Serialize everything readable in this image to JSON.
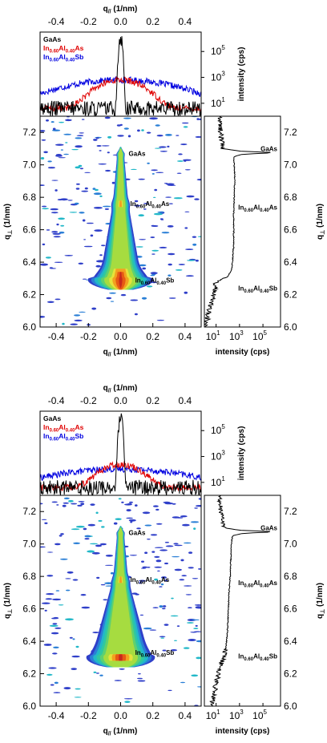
{
  "chart_data": [
    {
      "type": "heatmap",
      "panel": "top",
      "axes": {
        "qpar_label": {
          "main": "q",
          "sub": "//",
          "unit": " (1/nm)"
        },
        "qperp_label": {
          "main": "q",
          "sub": "⊥",
          "unit": " (1/nm)"
        },
        "intensity_label": "intensity (cps)",
        "qpar_range": [
          -0.5,
          0.5
        ],
        "qpar_ticks": [
          "-0.4",
          "-0.2",
          "0.0",
          "0.2",
          "0.4"
        ],
        "qperp_range": [
          6.0,
          7.3
        ],
        "qperp_ticks": [
          "6.0",
          "6.2",
          "6.4",
          "6.6",
          "6.8",
          "7.0",
          "7.2"
        ],
        "intensity_range_log10": [
          0,
          6.5
        ],
        "intensity_ticks": [
          {
            "base": "10",
            "exp": "1",
            "log10": 1
          },
          {
            "base": "10",
            "exp": "3",
            "log10": 3
          },
          {
            "base": "10",
            "exp": "5",
            "log10": 5
          }
        ]
      },
      "legend": [
        {
          "base": "GaAs",
          "parts": [],
          "color": "#000000"
        },
        {
          "base": "In",
          "parts": [
            [
              "0.60",
              "Al"
            ],
            [
              "0.40",
              "As"
            ]
          ],
          "color": "#e00000"
        },
        {
          "base": "In",
          "parts": [
            [
              "0.60",
              "Al"
            ],
            [
              "0.40",
              "Sb"
            ]
          ],
          "color": "#0000e0"
        }
      ],
      "qscan_series": [
        {
          "name": "GaAs",
          "color": "#000000",
          "peak_log10": 6.1,
          "center": 0.0,
          "width": 0.006,
          "background_log10": 0.6
        },
        {
          "name": "In0.60Al0.40As",
          "color": "#e00000",
          "peak_log10": 2.8,
          "center": 0.0,
          "width": 0.09,
          "background_log10": 0.6
        },
        {
          "name": "In0.60Al0.40Sb",
          "color": "#0000e0",
          "peak_log10": 2.8,
          "center": 0.0,
          "width": 0.22,
          "background_log10": 0.9
        }
      ],
      "map_annotations": [
        {
          "qpar": 0.05,
          "qperp": 7.07,
          "base": "GaAs",
          "parts": []
        },
        {
          "qpar": 0.06,
          "qperp": 6.76,
          "base": "In",
          "parts": [
            [
              "0.60",
              "Al"
            ],
            [
              "0.40",
              "As"
            ]
          ]
        },
        {
          "qpar": 0.09,
          "qperp": 6.29,
          "base": "In",
          "parts": [
            [
              "0.60",
              "Al"
            ],
            [
              "0.40",
              "Sb"
            ]
          ]
        }
      ],
      "profile_annotations": [
        {
          "qperp": 7.1,
          "base": "GaAs",
          "parts": []
        },
        {
          "qperp": 6.74,
          "base": "In",
          "parts": [
            [
              "0.60",
              "Al"
            ],
            [
              "0.40",
              "As"
            ]
          ]
        },
        {
          "qperp": 6.24,
          "base": "In",
          "parts": [
            [
              "0.60",
              "Al"
            ],
            [
              "0.40",
              "Sb"
            ]
          ]
        }
      ],
      "rod_features": [
        {
          "name": "GaAs",
          "qperp": 7.07
        },
        {
          "name": "In0.60Al0.40As",
          "qperp": 6.76
        },
        {
          "name": "In0.60Al0.40Sb",
          "qperp": 6.29
        }
      ],
      "profile": {
        "points": [
          [
            7.3,
            1.3
          ],
          [
            7.2,
            1.4
          ],
          [
            7.1,
            1.6
          ],
          [
            7.085,
            3.0
          ],
          [
            7.075,
            6.1
          ],
          [
            7.065,
            3.2
          ],
          [
            7.05,
            2.5
          ],
          [
            7.0,
            2.55
          ],
          [
            6.9,
            2.6
          ],
          [
            6.8,
            2.55
          ],
          [
            6.7,
            2.5
          ],
          [
            6.6,
            2.5
          ],
          [
            6.5,
            2.5
          ],
          [
            6.4,
            2.4
          ],
          [
            6.35,
            2.3
          ],
          [
            6.31,
            2.0
          ],
          [
            6.29,
            1.5
          ],
          [
            6.27,
            1.0
          ],
          [
            6.2,
            0.8
          ],
          [
            6.1,
            0.4
          ],
          [
            6.0,
            0.1
          ]
        ]
      }
    },
    {
      "type": "heatmap",
      "panel": "bottom",
      "axes": {
        "qpar_label": {
          "main": "q",
          "sub": "//",
          "unit": " (1/nm)"
        },
        "qperp_label": {
          "main": "q",
          "sub": "⊥",
          "unit": " (1/nm)"
        },
        "intensity_label": "intensity (cps)",
        "qpar_range": [
          -0.5,
          0.5
        ],
        "qpar_ticks": [
          "-0.4",
          "-0.2",
          "0.0",
          "0.2",
          "0.4"
        ],
        "qperp_range": [
          6.0,
          7.3
        ],
        "qperp_ticks": [
          "6.0",
          "6.2",
          "6.4",
          "6.6",
          "6.8",
          "7.0",
          "7.2"
        ],
        "intensity_range_log10": [
          0,
          6.5
        ],
        "intensity_ticks": [
          {
            "base": "10",
            "exp": "1",
            "log10": 1
          },
          {
            "base": "10",
            "exp": "3",
            "log10": 3
          },
          {
            "base": "10",
            "exp": "5",
            "log10": 5
          }
        ]
      },
      "legend": [
        {
          "base": "GaAs",
          "parts": [],
          "color": "#000000"
        },
        {
          "base": "In",
          "parts": [
            [
              "0.60",
              "Al"
            ],
            [
              "0.40",
              "As"
            ]
          ],
          "color": "#e00000"
        },
        {
          "base": "In",
          "parts": [
            [
              "0.60",
              "Al"
            ],
            [
              "0.40",
              "Sb"
            ]
          ],
          "color": "#0000e0"
        }
      ],
      "qscan_series": [
        {
          "name": "GaAs",
          "color": "#000000",
          "peak_log10": 6.1,
          "center": 0.0,
          "width": 0.006,
          "background_log10": 0.6
        },
        {
          "name": "In0.60Al0.40As",
          "color": "#e00000",
          "peak_log10": 2.4,
          "center": 0.0,
          "width": 0.08,
          "background_log10": 0.6
        },
        {
          "name": "In0.60Al0.40Sb",
          "color": "#0000e0",
          "peak_log10": 2.0,
          "center": 0.0,
          "width": 0.26,
          "background_log10": 0.9
        }
      ],
      "map_annotations": [
        {
          "qpar": 0.05,
          "qperp": 7.07,
          "base": "GaAs",
          "parts": []
        },
        {
          "qpar": 0.06,
          "qperp": 6.78,
          "base": "In",
          "parts": [
            [
              "0.60",
              "Al"
            ],
            [
              "0.40",
              "As"
            ]
          ]
        },
        {
          "qpar": 0.09,
          "qperp": 6.33,
          "base": "In",
          "parts": [
            [
              "0.60",
              "Al"
            ],
            [
              "0.40",
              "Sb"
            ]
          ]
        }
      ],
      "profile_annotations": [
        {
          "qperp": 7.1,
          "base": "GaAs",
          "parts": []
        },
        {
          "qperp": 6.76,
          "base": "In",
          "parts": [
            [
              "0.60",
              "Al"
            ],
            [
              "0.40",
              "As"
            ]
          ]
        },
        {
          "qperp": 6.31,
          "base": "In",
          "parts": [
            [
              "0.60",
              "Al"
            ],
            [
              "0.40",
              "Sb"
            ]
          ]
        }
      ],
      "rod_features": [
        {
          "name": "GaAs",
          "qperp": 7.07
        },
        {
          "name": "In0.60Al0.40As",
          "qperp": 6.78
        },
        {
          "name": "In0.60Al0.40Sb",
          "qperp": 6.3
        }
      ],
      "profile": {
        "points": [
          [
            7.3,
            1.3
          ],
          [
            7.2,
            1.4
          ],
          [
            7.1,
            1.6
          ],
          [
            7.085,
            3.0
          ],
          [
            7.075,
            6.1
          ],
          [
            7.065,
            3.2
          ],
          [
            7.05,
            2.4
          ],
          [
            7.0,
            2.3
          ],
          [
            6.9,
            2.25
          ],
          [
            6.8,
            2.2
          ],
          [
            6.7,
            2.1
          ],
          [
            6.6,
            2.05
          ],
          [
            6.5,
            2.0
          ],
          [
            6.4,
            1.9
          ],
          [
            6.35,
            1.8
          ],
          [
            6.3,
            1.7
          ],
          [
            6.25,
            1.4
          ],
          [
            6.2,
            1.2
          ],
          [
            6.1,
            0.9
          ],
          [
            6.0,
            0.6
          ]
        ]
      }
    }
  ]
}
